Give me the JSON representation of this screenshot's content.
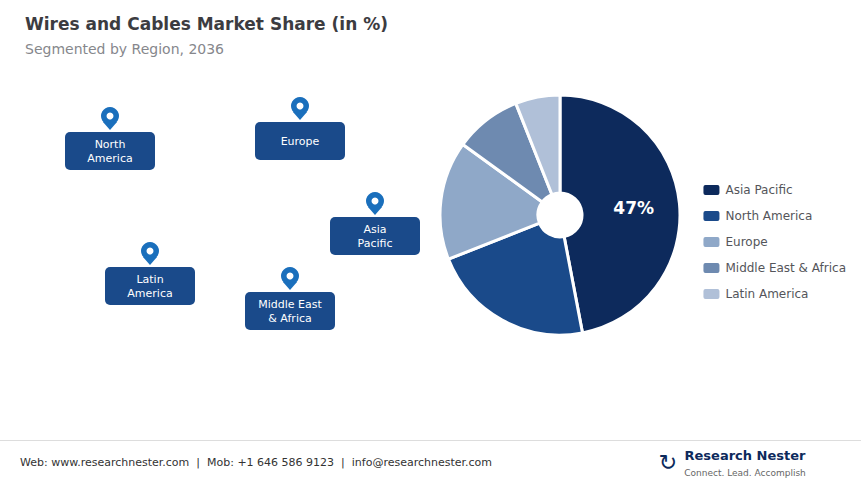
{
  "chart_data": {
    "type": "pie",
    "title": "Wires and Cables Market Share (in %)",
    "subtitle": "Segmented by Region, 2036",
    "categories": [
      "Asia Pacific",
      "North America",
      "Europe",
      "Middle East & Africa",
      "Latin America"
    ],
    "values": [
      47,
      22,
      16,
      9,
      6
    ],
    "value_labels": [
      "47%",
      null,
      null,
      null,
      null
    ],
    "colors": [
      "#0d2a5c",
      "#1a4a8a",
      "#8fa8c8",
      "#6e8ab0",
      "#b0c0d8"
    ],
    "legend": "right",
    "annotations": [
      "North\nAmerica",
      "Europe",
      "Asia\nPacific",
      "Middle East\n& Africa",
      "Latin\nAmerica",
      "Web: www.researchnester.com  |  Mob: +1 646 586 9123  |  info@researchnester.com",
      "Research Nester",
      "Connect. Lead. Accomplish",
      "↻"
    ]
  }
}
